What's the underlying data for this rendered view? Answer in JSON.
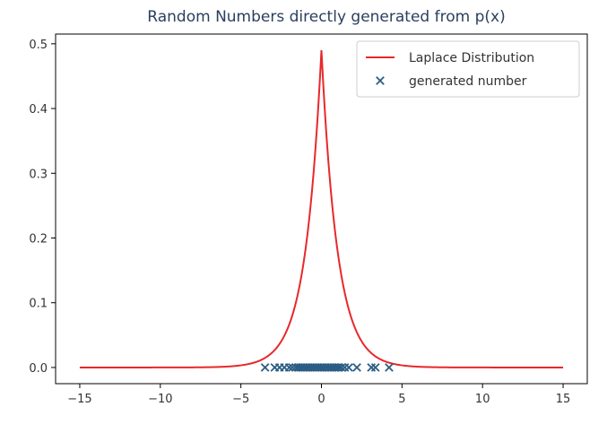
{
  "chart_data": {
    "type": "line",
    "title": "Random Numbers directly generated from p(x)",
    "xlabel": "",
    "ylabel": "",
    "xlim": [
      -16.5,
      16.5
    ],
    "ylim": [
      -0.025,
      0.515
    ],
    "xticks": [
      -15,
      -10,
      -5,
      0,
      5,
      10,
      15
    ],
    "xtick_labels": [
      "−15",
      "−10",
      "−5",
      "0",
      "5",
      "10",
      "15"
    ],
    "yticks": [
      0.0,
      0.1,
      0.2,
      0.3,
      0.4,
      0.5
    ],
    "ytick_labels": [
      "0.0",
      "0.1",
      "0.2",
      "0.3",
      "0.4",
      "0.5"
    ],
    "grid": false,
    "legend_position": "top-right",
    "series": [
      {
        "name": "Laplace Distribution",
        "kind": "line",
        "color": "#e8282b",
        "x_range": [
          -15,
          15
        ],
        "peak": 0.49,
        "scale": 1.0
      },
      {
        "name": "generated number",
        "kind": "scatter",
        "marker": "x",
        "color": "#2b5d84",
        "points": [
          [
            -3.5,
            0
          ],
          [
            -2.9,
            0
          ],
          [
            -2.6,
            0
          ],
          [
            -2.3,
            0
          ],
          [
            -2.0,
            0
          ],
          [
            -1.8,
            0
          ],
          [
            -1.6,
            0
          ],
          [
            -1.45,
            0
          ],
          [
            -1.3,
            0
          ],
          [
            -1.15,
            0
          ],
          [
            -1.0,
            0
          ],
          [
            -0.85,
            0
          ],
          [
            -0.7,
            0
          ],
          [
            -0.55,
            0
          ],
          [
            -0.4,
            0
          ],
          [
            -0.25,
            0
          ],
          [
            -0.1,
            0
          ],
          [
            0.05,
            0
          ],
          [
            0.2,
            0
          ],
          [
            0.35,
            0
          ],
          [
            0.5,
            0
          ],
          [
            0.65,
            0
          ],
          [
            0.8,
            0
          ],
          [
            0.95,
            0
          ],
          [
            1.1,
            0
          ],
          [
            1.25,
            0
          ],
          [
            1.45,
            0
          ],
          [
            1.7,
            0
          ],
          [
            2.2,
            0
          ],
          [
            3.1,
            0
          ],
          [
            3.35,
            0
          ],
          [
            4.2,
            0
          ]
        ]
      }
    ]
  }
}
